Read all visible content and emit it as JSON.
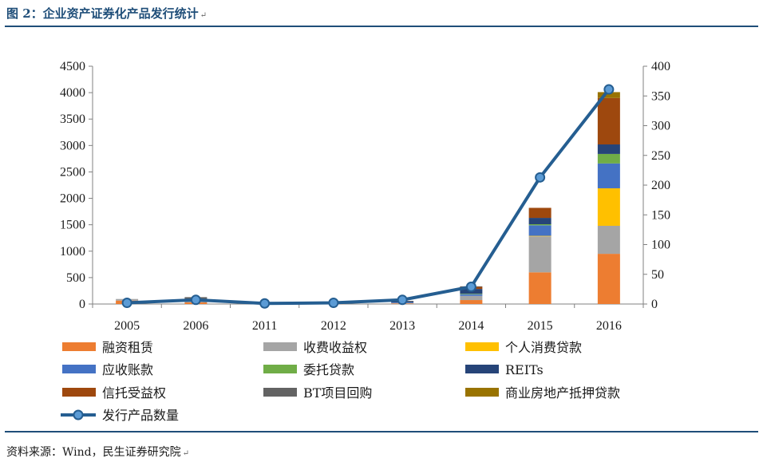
{
  "header": {
    "title": "图 2：企业资产证券化产品发行统计",
    "para_mark": "↵"
  },
  "footer": {
    "source": "资料来源：Wind，民生证券研究院",
    "para_mark": "↵"
  },
  "chart_data": {
    "type": "bar",
    "stacked": true,
    "categories": [
      "2005",
      "2006",
      "2011",
      "2012",
      "2013",
      "2014",
      "2015",
      "2016"
    ],
    "y_left": {
      "ylim": [
        0,
        4500
      ],
      "ticks": [
        "0",
        "500",
        "1000",
        "1500",
        "2000",
        "2500",
        "3000",
        "3500",
        "4000",
        "4500"
      ]
    },
    "y_right": {
      "ylim": [
        0,
        400
      ],
      "ticks": [
        "0",
        "50",
        "100",
        "150",
        "200",
        "250",
        "300",
        "350",
        "400"
      ]
    },
    "series": [
      {
        "name": "融资租赁",
        "color": "#ed7d31",
        "axis": "left",
        "values": [
          65,
          30,
          0,
          5,
          10,
          75,
          600,
          950
        ]
      },
      {
        "name": "收费收益权",
        "color": "#a5a5a5",
        "axis": "left",
        "values": [
          30,
          20,
          5,
          10,
          10,
          80,
          680,
          530
        ]
      },
      {
        "name": "个人消费贷款",
        "color": "#ffc000",
        "axis": "left",
        "values": [
          0,
          0,
          0,
          0,
          0,
          0,
          10,
          710
        ]
      },
      {
        "name": "应收账款",
        "color": "#4472c4",
        "axis": "left",
        "values": [
          0,
          10,
          0,
          5,
          10,
          30,
          200,
          470
        ]
      },
      {
        "name": "委托贷款",
        "color": "#70ad47",
        "axis": "left",
        "values": [
          0,
          0,
          0,
          0,
          0,
          10,
          20,
          180
        ]
      },
      {
        "name": "REITs",
        "color": "#264478",
        "axis": "left",
        "values": [
          0,
          10,
          0,
          5,
          20,
          90,
          120,
          180
        ]
      },
      {
        "name": "信托受益权",
        "color": "#9e480e",
        "axis": "left",
        "values": [
          0,
          0,
          0,
          0,
          0,
          40,
          190,
          880
        ]
      },
      {
        "name": "BT项目回购",
        "color": "#636363",
        "axis": "left",
        "values": [
          0,
          60,
          0,
          0,
          10,
          10,
          0,
          0
        ]
      },
      {
        "name": "商业房地产抵押贷款",
        "color": "#997300",
        "axis": "left",
        "values": [
          0,
          0,
          0,
          0,
          0,
          0,
          0,
          110
        ]
      }
    ],
    "line": {
      "name": "发行产品数量",
      "color": "#255e91",
      "axis": "right",
      "values": [
        2,
        7,
        1,
        2,
        7,
        29,
        213,
        361
      ]
    },
    "legend_position": "bottom"
  }
}
